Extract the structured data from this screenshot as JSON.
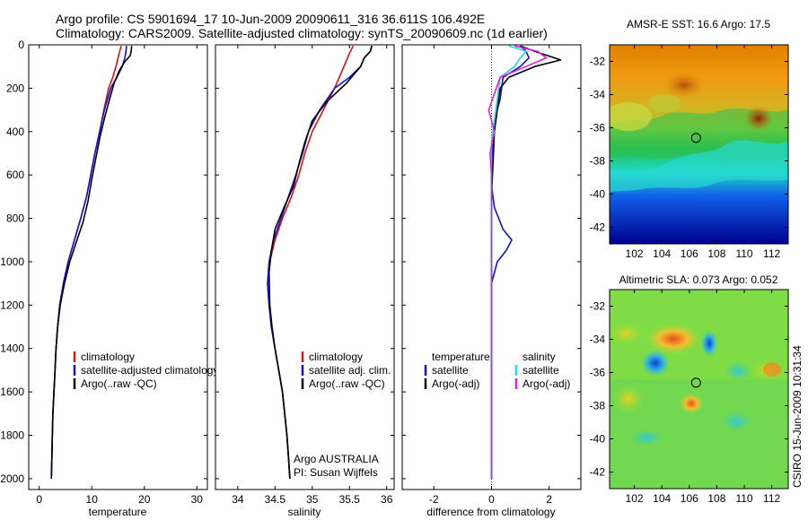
{
  "title_line1": "Argo profile: CS 5901694_17 10-Jun-2009 20090611_316 36.611S 106.492E",
  "title_line2": "Climatology: CARS2009. Satellite-adjusted climatology: synTS_20090609.nc (1d earlier)",
  "side_label": "CSIRO 15-Jun-2009 10:31:34",
  "chart_data": [
    {
      "type": "line",
      "id": "temperature",
      "xlabel": "temperature",
      "xlim": [
        -2,
        32
      ],
      "xticks": [
        0,
        10,
        20,
        30
      ],
      "ylim": [
        2050,
        0
      ],
      "yticks": [
        0,
        200,
        400,
        600,
        800,
        1000,
        1200,
        1400,
        1600,
        1800,
        2000
      ],
      "legend": [
        "climatology",
        "satellite-adjusted climatology",
        "Argo(..raw -QC)"
      ],
      "series": [
        {
          "name": "climatology",
          "color": "#e01010",
          "points": [
            [
              15.6,
              5
            ],
            [
              15.3,
              30
            ],
            [
              15.0,
              60
            ],
            [
              14.6,
              100
            ],
            [
              14.0,
              150
            ],
            [
              13.2,
              200
            ],
            [
              12.3,
              300
            ],
            [
              11.5,
              400
            ],
            [
              10.6,
              500
            ],
            [
              9.8,
              600
            ],
            [
              9.0,
              700
            ],
            [
              7.9,
              800
            ],
            [
              6.7,
              900
            ],
            [
              5.5,
              1000
            ],
            [
              4.6,
              1100
            ],
            [
              3.9,
              1200
            ],
            [
              3.5,
              1300
            ],
            [
              3.2,
              1400
            ],
            [
              3.0,
              1500
            ],
            [
              2.8,
              1600
            ],
            [
              2.6,
              1700
            ],
            [
              2.5,
              1800
            ],
            [
              2.4,
              1900
            ],
            [
              2.3,
              2000
            ]
          ]
        },
        {
          "name": "satellite-adjusted climatology",
          "color": "#1010e0",
          "points": [
            [
              16.6,
              5
            ],
            [
              16.5,
              30
            ],
            [
              16.3,
              60
            ],
            [
              15.8,
              100
            ],
            [
              14.8,
              150
            ],
            [
              13.6,
              200
            ],
            [
              12.4,
              300
            ],
            [
              11.5,
              400
            ],
            [
              10.6,
              500
            ],
            [
              9.8,
              600
            ],
            [
              9.0,
              700
            ],
            [
              7.9,
              800
            ],
            [
              6.7,
              900
            ],
            [
              5.5,
              1000
            ],
            [
              4.6,
              1100
            ],
            [
              3.9,
              1200
            ],
            [
              3.5,
              1300
            ],
            [
              3.2,
              1400
            ],
            [
              3.0,
              1500
            ],
            [
              2.8,
              1600
            ],
            [
              2.6,
              1700
            ],
            [
              2.5,
              1800
            ],
            [
              2.4,
              1900
            ],
            [
              2.3,
              2000
            ]
          ]
        },
        {
          "name": "Argo(..raw -QC)",
          "color": "#000000",
          "points": [
            [
              17.6,
              5
            ],
            [
              17.5,
              30
            ],
            [
              17.3,
              50
            ],
            [
              16.2,
              80
            ],
            [
              15.2,
              120
            ],
            [
              14.2,
              180
            ],
            [
              13.4,
              250
            ],
            [
              12.5,
              330
            ],
            [
              11.6,
              420
            ],
            [
              10.8,
              520
            ],
            [
              10.0,
              620
            ],
            [
              9.3,
              720
            ],
            [
              8.3,
              820
            ],
            [
              6.9,
              920
            ],
            [
              5.8,
              1000
            ],
            [
              4.8,
              1100
            ],
            [
              4.0,
              1200
            ],
            [
              3.5,
              1300
            ],
            [
              3.2,
              1400
            ],
            [
              3.0,
              1500
            ],
            [
              2.8,
              1600
            ],
            [
              2.6,
              1700
            ],
            [
              2.5,
              1800
            ],
            [
              2.4,
              1900
            ],
            [
              2.3,
              2000
            ]
          ]
        }
      ]
    },
    {
      "type": "line",
      "id": "salinity",
      "xlabel": "salinity",
      "xlim": [
        33.7,
        36.1
      ],
      "xticks": [
        34,
        34.5,
        35,
        35.5,
        36
      ],
      "ylim": [
        2050,
        0
      ],
      "legend": [
        "climatology",
        "satellite adj. clim.",
        "Argo(..raw -QC)"
      ],
      "annotation": [
        "Argo AUSTRALIA",
        "PI: Susan Wijffels"
      ],
      "series": [
        {
          "name": "climatology",
          "color": "#e01010",
          "points": [
            [
              35.55,
              5
            ],
            [
              35.5,
              40
            ],
            [
              35.45,
              80
            ],
            [
              35.4,
              120
            ],
            [
              35.3,
              200
            ],
            [
              35.15,
              300
            ],
            [
              35.0,
              400
            ],
            [
              34.9,
              500
            ],
            [
              34.82,
              600
            ],
            [
              34.72,
              700
            ],
            [
              34.6,
              800
            ],
            [
              34.5,
              900
            ],
            [
              34.43,
              1000
            ],
            [
              34.4,
              1100
            ],
            [
              34.42,
              1200
            ],
            [
              34.45,
              1300
            ],
            [
              34.5,
              1400
            ],
            [
              34.55,
              1500
            ],
            [
              34.6,
              1600
            ],
            [
              34.63,
              1700
            ],
            [
              34.66,
              1800
            ],
            [
              34.68,
              1900
            ],
            [
              34.7,
              2000
            ]
          ]
        },
        {
          "name": "satellite adj. clim.",
          "color": "#1010e0",
          "points": [
            [
              35.8,
              5
            ],
            [
              35.78,
              30
            ],
            [
              35.7,
              60
            ],
            [
              35.65,
              100
            ],
            [
              35.5,
              150
            ],
            [
              35.3,
              200
            ],
            [
              35.1,
              300
            ],
            [
              34.95,
              400
            ],
            [
              34.87,
              500
            ],
            [
              34.78,
              600
            ],
            [
              34.68,
              700
            ],
            [
              34.58,
              800
            ],
            [
              34.48,
              900
            ],
            [
              34.42,
              1000
            ],
            [
              34.4,
              1100
            ],
            [
              34.42,
              1200
            ],
            [
              34.45,
              1300
            ],
            [
              34.5,
              1400
            ],
            [
              34.55,
              1500
            ],
            [
              34.6,
              1600
            ],
            [
              34.63,
              1700
            ],
            [
              34.66,
              1800
            ],
            [
              34.68,
              1900
            ],
            [
              34.7,
              2000
            ]
          ]
        },
        {
          "name": "Argo(..raw -QC)",
          "color": "#000000",
          "points": [
            [
              35.8,
              5
            ],
            [
              35.78,
              30
            ],
            [
              35.7,
              60
            ],
            [
              35.65,
              100
            ],
            [
              35.45,
              180
            ],
            [
              35.2,
              260
            ],
            [
              35.0,
              350
            ],
            [
              34.9,
              450
            ],
            [
              34.82,
              550
            ],
            [
              34.75,
              650
            ],
            [
              34.62,
              750
            ],
            [
              34.5,
              850
            ],
            [
              34.45,
              950
            ],
            [
              34.42,
              1050
            ],
            [
              34.43,
              1200
            ],
            [
              34.46,
              1300
            ],
            [
              34.5,
              1400
            ],
            [
              34.55,
              1500
            ],
            [
              34.6,
              1600
            ],
            [
              34.63,
              1700
            ],
            [
              34.66,
              1800
            ],
            [
              34.68,
              1900
            ],
            [
              34.7,
              2000
            ]
          ]
        }
      ]
    },
    {
      "type": "line",
      "id": "difference",
      "xlabel": "difference from climatology",
      "xlim": [
        -3.1,
        3.1
      ],
      "xticks": [
        -2,
        0,
        2
      ],
      "ylim": [
        2050,
        0
      ],
      "legend_left_title": "temperature",
      "legend_left": [
        "satellite",
        "Argo(-adj)"
      ],
      "legend_right_title": "salinity",
      "legend_right": [
        "satellite",
        "Argo(-adj)"
      ],
      "series": [
        {
          "name": "temperature satellite",
          "color": "#1010e0",
          "points": [
            [
              1.0,
              5
            ],
            [
              1.2,
              30
            ],
            [
              1.3,
              60
            ],
            [
              1.0,
              100
            ],
            [
              0.4,
              150
            ],
            [
              0.3,
              250
            ],
            [
              0.1,
              350
            ],
            [
              0.05,
              450
            ],
            [
              0.0,
              550
            ],
            [
              0.0,
              650
            ],
            [
              0.1,
              750
            ],
            [
              0.4,
              850
            ],
            [
              0.7,
              900
            ],
            [
              0.5,
              950
            ],
            [
              0.2,
              1000
            ],
            [
              0.0,
              1100
            ],
            [
              0.0,
              1300
            ],
            [
              0.0,
              1500
            ],
            [
              0.0,
              1700
            ],
            [
              0.0,
              1900
            ],
            [
              0.0,
              2000
            ]
          ]
        },
        {
          "name": "temperature Argo(-adj)",
          "color": "#000000",
          "points": [
            [
              1.0,
              5
            ],
            [
              1.5,
              30
            ],
            [
              2.4,
              70
            ],
            [
              1.5,
              100
            ],
            [
              0.6,
              150
            ],
            [
              0.3,
              200
            ],
            [
              0.2,
              300
            ],
            [
              0.1,
              400
            ],
            [
              0.05,
              550
            ],
            [
              0.0,
              700
            ],
            [
              0.0,
              900
            ],
            [
              0.0,
              1100
            ],
            [
              0.0,
              1300
            ],
            [
              0.0,
              1500
            ],
            [
              0.0,
              1700
            ],
            [
              0.0,
              1900
            ],
            [
              0.0,
              2000
            ]
          ]
        },
        {
          "name": "salinity satellite",
          "color": "#20d8e0",
          "points": [
            [
              0.6,
              5
            ],
            [
              1.2,
              30
            ],
            [
              1.0,
              60
            ],
            [
              0.8,
              100
            ],
            [
              0.3,
              150
            ],
            [
              0.2,
              250
            ],
            [
              0.1,
              350
            ],
            [
              0.0,
              450
            ],
            [
              0.0,
              600
            ],
            [
              0.0,
              800
            ],
            [
              0.0,
              1000
            ],
            [
              0.0,
              1200
            ],
            [
              0.0,
              1400
            ],
            [
              0.0,
              1600
            ],
            [
              0.0,
              1800
            ],
            [
              0.0,
              2000
            ]
          ]
        },
        {
          "name": "salinity Argo(-adj)",
          "color": "#e020e0",
          "points": [
            [
              0.8,
              5
            ],
            [
              1.6,
              30
            ],
            [
              1.9,
              60
            ],
            [
              1.2,
              100
            ],
            [
              0.3,
              150
            ],
            [
              -0.1,
              300
            ],
            [
              0.1,
              400
            ],
            [
              -0.05,
              500
            ],
            [
              0.0,
              600
            ],
            [
              0.0,
              800
            ],
            [
              0.0,
              1000
            ],
            [
              0.0,
              1200
            ],
            [
              0.0,
              1400
            ],
            [
              0.0,
              1600
            ],
            [
              0.0,
              1800
            ],
            [
              0.0,
              2000
            ]
          ]
        }
      ]
    },
    {
      "type": "heatmap",
      "id": "sst_map",
      "title": "AMSR-E SST: 16.6 Argo: 17.5",
      "xticks": [
        102,
        104,
        106,
        108,
        110,
        112
      ],
      "yticks": [
        -32,
        -34,
        -36,
        -38,
        -40,
        -42
      ],
      "xlim": [
        100.2,
        113.2
      ],
      "ylim": [
        -43,
        -31
      ],
      "marker": [
        106.492,
        -36.611
      ]
    },
    {
      "type": "heatmap",
      "id": "sla_map",
      "title": "Altimetric SLA: 0.073 Argo: 0.052",
      "xticks": [
        102,
        104,
        106,
        108,
        110,
        112
      ],
      "yticks": [
        -32,
        -34,
        -36,
        -38,
        -40,
        -42
      ],
      "xlim": [
        100.2,
        113.2
      ],
      "ylim": [
        -43,
        -31
      ],
      "marker": [
        106.492,
        -36.611
      ]
    }
  ]
}
